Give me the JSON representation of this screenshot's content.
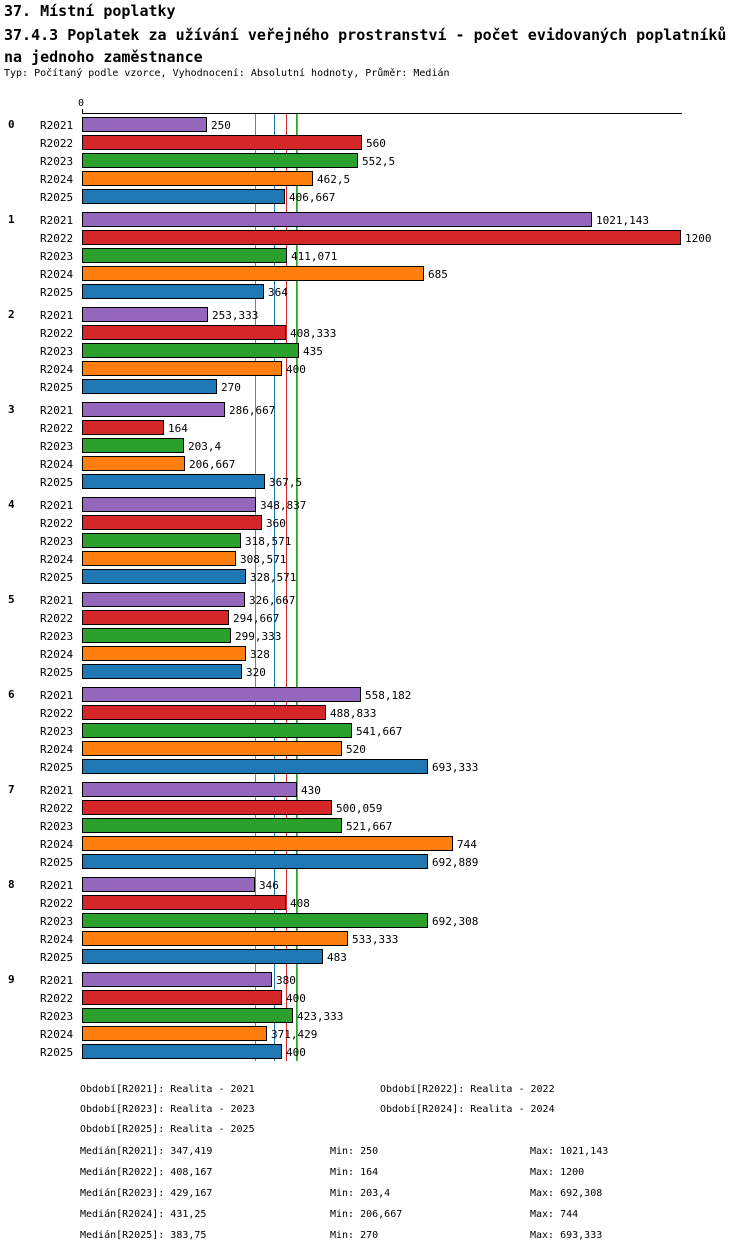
{
  "header": {
    "section_title": "37. Místní poplatky",
    "report_title": "37.4.3 Poplatek za užívání veřejného prostranství - počet evidovaných poplatníků na jednoho zaměstnance",
    "meta": "Typ: Počítaný podle vzorce, Vyhodnocení: Absolutní hodnoty, Průměr: Medián"
  },
  "chart_data": {
    "type": "bar",
    "orientation": "horizontal",
    "title": "37.4.3 Poplatek za užívání veřejného prostranství - počet evidovaných poplatníků na jednoho zaměstnance",
    "xlabel": "",
    "ylabel": "",
    "xlim": [
      0,
      1200
    ],
    "axis_tick_label": "0",
    "grid": false,
    "legend_position": "bottom",
    "categories": [
      "0",
      "1",
      "2",
      "3",
      "4",
      "5",
      "6",
      "7",
      "8",
      "9"
    ],
    "series": [
      {
        "name": "R2021",
        "color": "#9467bd",
        "values": [
          250,
          1021.143,
          253.333,
          286.667,
          348.837,
          326.667,
          558.182,
          430,
          346,
          380
        ],
        "labels": [
          "250",
          "1021,143",
          "253,333",
          "286,667",
          "348,837",
          "326,667",
          "558,182",
          "430",
          "346",
          "380"
        ]
      },
      {
        "name": "R2022",
        "color": "#d62728",
        "values": [
          560,
          1200,
          408.333,
          164,
          360,
          294.667,
          488.833,
          500.059,
          408,
          400
        ],
        "labels": [
          "560",
          "1200",
          "408,333",
          "164",
          "360",
          "294,667",
          "488,833",
          "500,059",
          "408",
          "400"
        ]
      },
      {
        "name": "R2023",
        "color": "#2ca02c",
        "values": [
          552.5,
          411.071,
          435,
          203.4,
          318.571,
          299.333,
          541.667,
          521.667,
          692.308,
          423.333
        ],
        "labels": [
          "552,5",
          "411,071",
          "435",
          "203,4",
          "318,571",
          "299,333",
          "541,667",
          "521,667",
          "692,308",
          "423,333"
        ]
      },
      {
        "name": "R2024",
        "color": "#ff7f0e",
        "values": [
          462.5,
          685,
          400,
          206.667,
          308.571,
          328,
          520,
          744,
          533.333,
          371.429
        ],
        "labels": [
          "462,5",
          "685",
          "400",
          "206,667",
          "308,571",
          "328",
          "520",
          "744",
          "533,333",
          "371,429"
        ]
      },
      {
        "name": "R2025",
        "color": "#1f77b4",
        "values": [
          406.667,
          364,
          270,
          367.5,
          328.571,
          320,
          693.333,
          692.889,
          483,
          400
        ],
        "labels": [
          "406,667",
          "364",
          "270",
          "367,5",
          "328,571",
          "320",
          "693,333",
          "692,889",
          "483",
          "400"
        ]
      }
    ],
    "median_lines": [
      {
        "name": "R2021",
        "value": 347.419,
        "color": "#9467bd"
      },
      {
        "name": "R2022",
        "value": 408.167,
        "color": "#d62728"
      },
      {
        "name": "R2023",
        "value": 429.167,
        "color": "#2ca02c"
      },
      {
        "name": "R2024",
        "value": 431.25,
        "color": "#ff7f0e"
      },
      {
        "name": "R2025",
        "value": 383.75,
        "color": "#1f77b4"
      }
    ]
  },
  "footer": {
    "periods": [
      "Období[R2021]: Realita - 2021",
      "Období[R2022]: Realita - 2022",
      "Období[R2023]: Realita - 2023",
      "Období[R2024]: Realita - 2024",
      "Období[R2025]: Realita - 2025"
    ],
    "stats": [
      {
        "median": "Medián[R2021]: 347,419",
        "min": "Min: 250",
        "max": "Max: 1021,143"
      },
      {
        "median": "Medián[R2022]: 408,167",
        "min": "Min: 164",
        "max": "Max: 1200"
      },
      {
        "median": "Medián[R2023]: 429,167",
        "min": "Min: 203,4",
        "max": "Max: 692,308"
      },
      {
        "median": "Medián[R2024]: 431,25",
        "min": "Min: 206,667",
        "max": "Max: 744"
      },
      {
        "median": "Medián[R2025]: 383,75",
        "min": "Min: 270",
        "max": "Max: 693,333"
      }
    ]
  }
}
